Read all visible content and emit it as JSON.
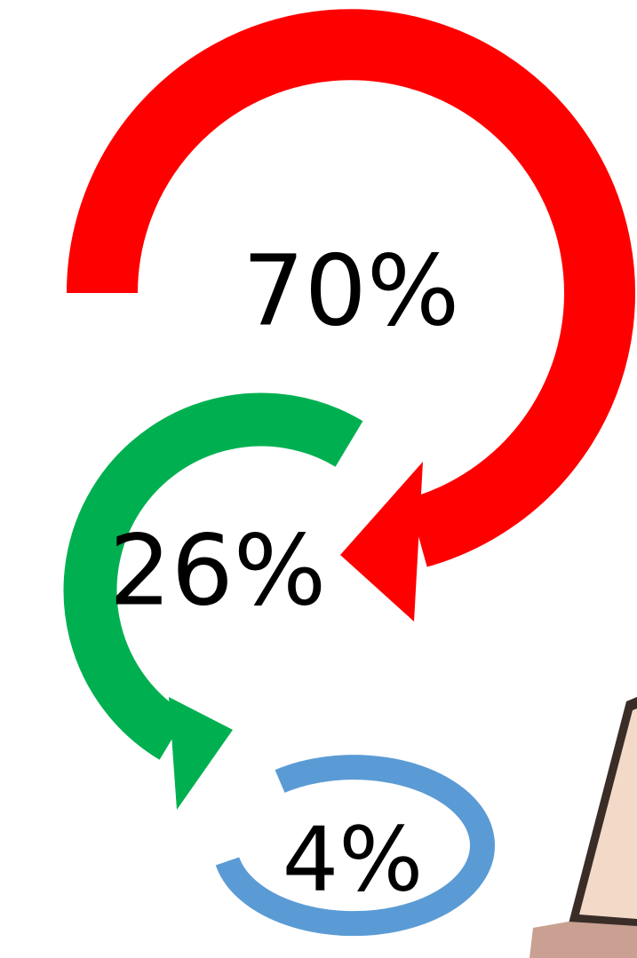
{
  "nodes": [
    {
      "label": "70%"
    },
    {
      "label": "26%"
    },
    {
      "label": "4%"
    }
  ]
}
